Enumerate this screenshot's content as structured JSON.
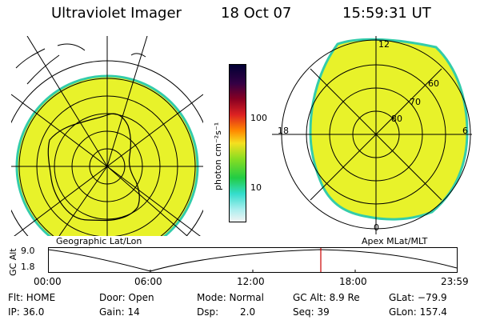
{
  "header": {
    "instrument": "Ultraviolet Imager",
    "date": "18 Oct 07",
    "time": "15:59:31 UT"
  },
  "left_panel": {
    "caption": "Geographic Lat/Lon"
  },
  "right_panel": {
    "caption": "Apex MLat/MLT",
    "mlt_labels": {
      "top": "12",
      "bottom": "0",
      "left": "18",
      "right": "6"
    },
    "lat_labels": [
      "60",
      "70",
      "80"
    ]
  },
  "colorbar": {
    "unit_label": "photon cm⁻²s⁻¹",
    "ticks": [
      "100",
      "10"
    ],
    "colors": {
      "top": "#000033",
      "mid_red": "#cc1133",
      "orange": "#ff9900",
      "yellow": "#e8f22a",
      "green": "#33cc33",
      "cyan": "#33dddd",
      "bottom": "#f0f0f0"
    }
  },
  "altitude_plot": {
    "ylabel": "GC Alt",
    "y_ticks": [
      "9.0",
      "1.8"
    ],
    "x_ticks": [
      "00:00",
      "06:00",
      "12:00",
      "18:00",
      "23:59"
    ],
    "marker_color": "#cc0000"
  },
  "status": {
    "flt": "Flt: HOME",
    "ip": "IP: 36.0",
    "door": "Door: Open",
    "gain": "Gain: 14",
    "mode": "Mode: Normal",
    "dsp_label": "Dsp:",
    "dsp_value": "2.0",
    "gc_alt": "GC Alt: 8.9 Re",
    "seq": "Seq: 39",
    "glat": "GLat: −79.9",
    "glon": "GLon: 157.4"
  },
  "image_fill_color": "#e8f22a",
  "image_edge_color": "#33ccaa"
}
